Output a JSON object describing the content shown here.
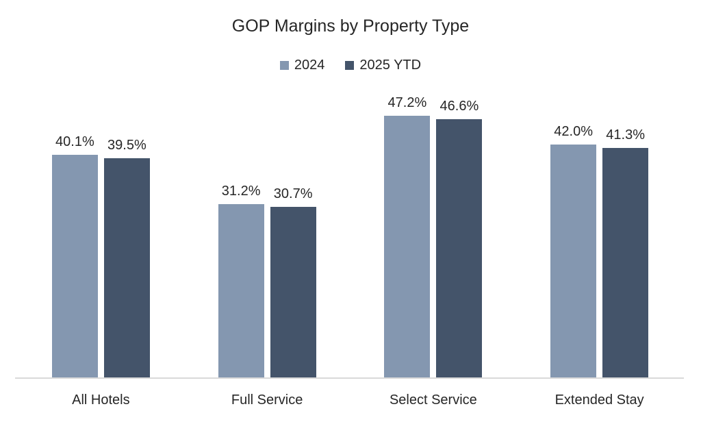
{
  "chart_data": {
    "type": "bar",
    "title": "GOP Margins by Property Type",
    "categories": [
      "All Hotels",
      "Full Service",
      "Select Service",
      "Extended Stay"
    ],
    "series": [
      {
        "name": "2024",
        "color": "#8497B0",
        "values": [
          40.1,
          31.2,
          47.2,
          42.0
        ],
        "labels": [
          "40.1%",
          "31.2%",
          "47.2%",
          "42.0%"
        ]
      },
      {
        "name": "2025 YTD",
        "color": "#44546A",
        "values": [
          39.5,
          30.7,
          46.6,
          41.3
        ],
        "labels": [
          "39.5%",
          "30.7%",
          "46.6%",
          "41.3%"
        ]
      }
    ],
    "xlabel": "",
    "ylabel": "",
    "ylim": [
      0,
      50
    ],
    "grid": false,
    "legend_position": "top",
    "data_labels": true,
    "colors": {
      "axis_line": "#D9D9D9",
      "text": "#262626",
      "background": "#FFFFFF"
    }
  }
}
